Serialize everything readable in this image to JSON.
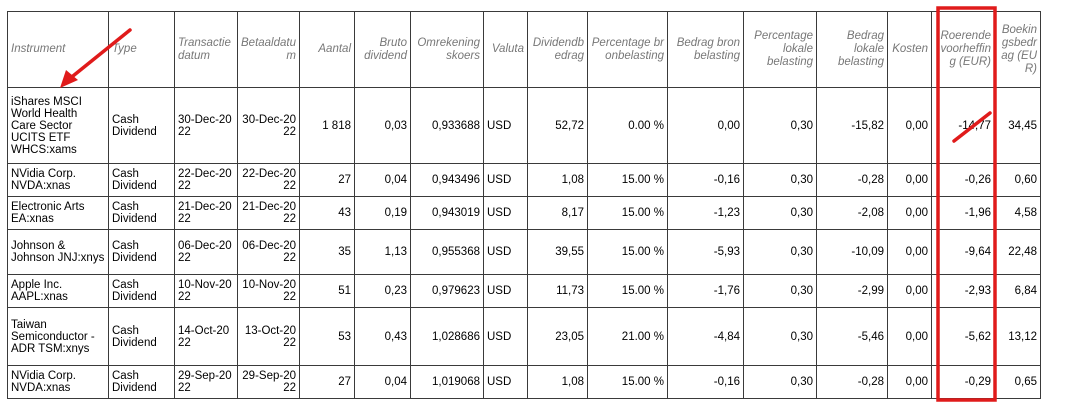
{
  "headers": {
    "instrument": "Instrument",
    "type": "Type",
    "transactiedatum": "Transactiedatum",
    "betaaldatum": "Betaaldatum",
    "aantal": "Aantal",
    "bruto_dividend": "Bruto dividend",
    "omrekeningskoers": "Omrekeningskoers",
    "valuta": "Valuta",
    "dividendbedrag": "Dividendbedrag",
    "percentage_bronbelasting": "Percentage bronbelasting",
    "bedrag_bronbelasting": "Bedrag bronbelasting",
    "percentage_lokale_belasting": "Percentage lokale belasting",
    "bedrag_lokale_belasting": "Bedrag lokale belasting",
    "kosten": "Kosten",
    "roerende_voorheffing": "Roerende voorheffing (EUR)",
    "boekingsbedrag": "Boekingsbedrag (EUR)"
  },
  "rows": [
    {
      "instrument": "iShares MSCI World Health Care Sector UCITS ETF WHCS:xams",
      "type": "Cash Dividend",
      "transactiedatum": "30-Dec-2022",
      "betaaldatum": "30-Dec-2022",
      "aantal": "1 818",
      "bruto": "0,03",
      "koers": "0,933688",
      "valuta": "USD",
      "dividendbedrag": "52,72",
      "pct_bron": "0.00 %",
      "bedrag_bron": "0,00",
      "pct_lokaal": "0,30",
      "bedrag_lokaal": "-15,82",
      "kosten": "0,00",
      "roerende": "-14,77",
      "boeking": "34,45"
    },
    {
      "instrument": "NVidia Corp. NVDA:xnas",
      "type": "Cash Dividend",
      "transactiedatum": "22-Dec-2022",
      "betaaldatum": "22-Dec-2022",
      "aantal": "27",
      "bruto": "0,04",
      "koers": "0,943496",
      "valuta": "USD",
      "dividendbedrag": "1,08",
      "pct_bron": "15.00 %",
      "bedrag_bron": "-0,16",
      "pct_lokaal": "0,30",
      "bedrag_lokaal": "-0,28",
      "kosten": "0,00",
      "roerende": "-0,26",
      "boeking": "0,60"
    },
    {
      "instrument": "Electronic Arts EA:xnas",
      "type": "Cash Dividend",
      "transactiedatum": "21-Dec-2022",
      "betaaldatum": "21-Dec-2022",
      "aantal": "43",
      "bruto": "0,19",
      "koers": "0,943019",
      "valuta": "USD",
      "dividendbedrag": "8,17",
      "pct_bron": "15.00 %",
      "bedrag_bron": "-1,23",
      "pct_lokaal": "0,30",
      "bedrag_lokaal": "-2,08",
      "kosten": "0,00",
      "roerende": "-1,96",
      "boeking": "4,58"
    },
    {
      "instrument": "Johnson & Johnson JNJ:xnys",
      "type": "Cash Dividend",
      "transactiedatum": "06-Dec-2022",
      "betaaldatum": "06-Dec-2022",
      "aantal": "35",
      "bruto": "1,13",
      "koers": "0,955368",
      "valuta": "USD",
      "dividendbedrag": "39,55",
      "pct_bron": "15.00 %",
      "bedrag_bron": "-5,93",
      "pct_lokaal": "0,30",
      "bedrag_lokaal": "-10,09",
      "kosten": "0,00",
      "roerende": "-9,64",
      "boeking": "22,48"
    },
    {
      "instrument": "Apple Inc. AAPL:xnas",
      "type": "Cash Dividend",
      "transactiedatum": "10-Nov-2022",
      "betaaldatum": "10-Nov-2022",
      "aantal": "51",
      "bruto": "0,23",
      "koers": "0,979623",
      "valuta": "USD",
      "dividendbedrag": "11,73",
      "pct_bron": "15.00 %",
      "bedrag_bron": "-1,76",
      "pct_lokaal": "0,30",
      "bedrag_lokaal": "-2,99",
      "kosten": "0,00",
      "roerende": "-2,93",
      "boeking": "6,84"
    },
    {
      "instrument": "Taiwan Semiconductor - ADR TSM:xnys",
      "type": "Cash Dividend",
      "transactiedatum": "14-Oct-2022",
      "betaaldatum": "13-Oct-2022",
      "aantal": "53",
      "bruto": "0,43",
      "koers": "1,028686",
      "valuta": "USD",
      "dividendbedrag": "23,05",
      "pct_bron": "21.00 %",
      "bedrag_bron": "-4,84",
      "pct_lokaal": "0,30",
      "bedrag_lokaal": "-5,46",
      "kosten": "0,00",
      "roerende": "-5,62",
      "boeking": "13,12"
    },
    {
      "instrument": "NVidia Corp. NVDA:xnas",
      "type": "Cash Dividend",
      "transactiedatum": "29-Sep-2022",
      "betaaldatum": "29-Sep-2022",
      "aantal": "27",
      "bruto": "0,04",
      "koers": "1,019068",
      "valuta": "USD",
      "dividendbedrag": "1,08",
      "pct_bron": "15.00 %",
      "bedrag_bron": "-0,16",
      "pct_lokaal": "0,30",
      "bedrag_lokaal": "-0,28",
      "kosten": "0,00",
      "roerende": "-0,29",
      "boeking": "0,65"
    }
  ],
  "annotations": {
    "highlight_color": "#e01b1b"
  }
}
